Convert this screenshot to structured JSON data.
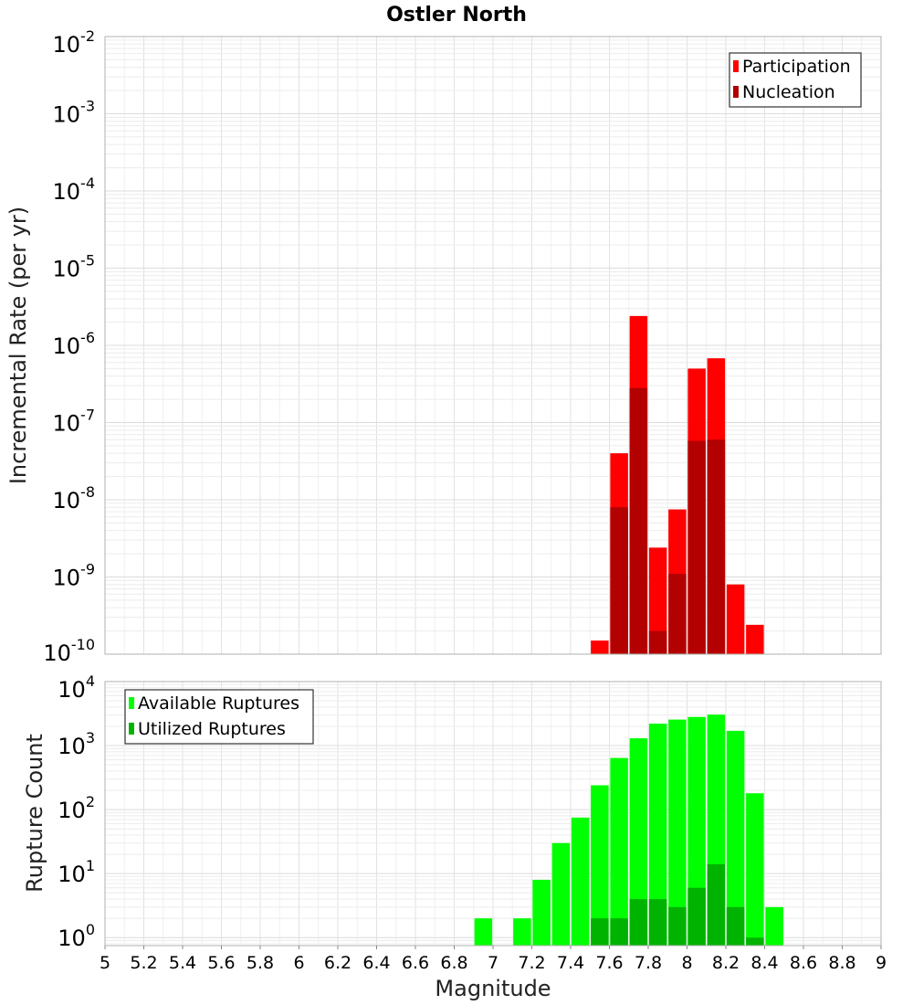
{
  "chart_data": [
    {
      "type": "bar",
      "title": "Ostler North",
      "ylabel": "Incremental Rate (per yr)",
      "yscale": "log",
      "ylim": [
        1e-10,
        0.01
      ],
      "xlim": [
        5,
        9
      ],
      "yticks": [
        {
          "base": "10",
          "exp": "-2"
        },
        {
          "base": "10",
          "exp": "-3"
        },
        {
          "base": "10",
          "exp": "-4"
        },
        {
          "base": "10",
          "exp": "-5"
        },
        {
          "base": "10",
          "exp": "-6"
        },
        {
          "base": "10",
          "exp": "-7"
        },
        {
          "base": "10",
          "exp": "-8"
        },
        {
          "base": "10",
          "exp": "-9"
        },
        {
          "base": "10",
          "exp": "-10"
        }
      ],
      "grid": true,
      "legend_position": "top-right",
      "series": [
        {
          "name": "Participation",
          "color": "#ff0000",
          "x": [
            7.55,
            7.65,
            7.75,
            7.85,
            7.95,
            8.05,
            8.15,
            8.25,
            8.35
          ],
          "values": [
            1.5e-10,
            4e-08,
            2.4e-06,
            2.4e-09,
            7.5e-09,
            5e-07,
            6.8e-07,
            8e-10,
            2.4e-10
          ]
        },
        {
          "name": "Nucleation",
          "color": "#b30000",
          "x": [
            7.65,
            7.75,
            7.85,
            7.95,
            8.05,
            8.15
          ],
          "values": [
            8e-09,
            2.8e-07,
            2e-10,
            1.1e-09,
            5.8e-08,
            6e-08
          ]
        }
      ]
    },
    {
      "type": "bar",
      "ylabel": "Rupture Count",
      "xlabel": "Magnitude",
      "yscale": "log",
      "ylim": [
        0.75,
        10000
      ],
      "xlim": [
        5,
        9
      ],
      "xticks": [
        "5",
        "5.2",
        "5.4",
        "5.6",
        "5.8",
        "6",
        "6.2",
        "6.4",
        "6.6",
        "6.8",
        "7",
        "7.2",
        "7.4",
        "7.6",
        "7.8",
        "8",
        "8.2",
        "8.4",
        "8.6",
        "8.8",
        "9"
      ],
      "yticks": [
        {
          "base": "10",
          "exp": "4"
        },
        {
          "base": "10",
          "exp": "3"
        },
        {
          "base": "10",
          "exp": "2"
        },
        {
          "base": "10",
          "exp": "1"
        },
        {
          "base": "10",
          "exp": "0"
        }
      ],
      "grid": true,
      "legend_position": "top-left",
      "series": [
        {
          "name": "Available Ruptures",
          "color": "#00ff00",
          "x": [
            6.95,
            7.15,
            7.25,
            7.35,
            7.45,
            7.55,
            7.65,
            7.75,
            7.85,
            7.95,
            8.05,
            8.15,
            8.25,
            8.35,
            8.45
          ],
          "values": [
            2,
            2,
            8,
            30,
            75,
            240,
            640,
            1300,
            2200,
            2550,
            2800,
            3050,
            1700,
            180,
            3
          ]
        },
        {
          "name": "Utilized Ruptures",
          "color": "#00b300",
          "x": [
            7.55,
            7.65,
            7.75,
            7.85,
            7.95,
            8.05,
            8.15,
            8.25,
            8.35
          ],
          "values": [
            2,
            2,
            4,
            4,
            3,
            6,
            14,
            3,
            1
          ]
        }
      ]
    }
  ]
}
